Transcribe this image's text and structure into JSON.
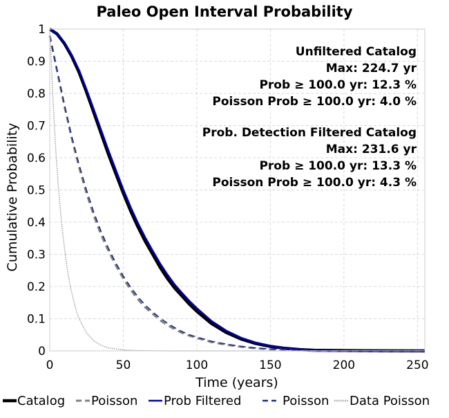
{
  "chart_data": {
    "type": "line",
    "title": "Paleo Open Interval Probability",
    "xlabel": "Time (years)",
    "ylabel": "Cumulative Probability",
    "xlim": [
      0,
      255
    ],
    "ylim": [
      0,
      1
    ],
    "xticks": [
      0,
      50,
      100,
      150,
      200,
      250
    ],
    "yticks": [
      0,
      0.1,
      0.2,
      0.3,
      0.4,
      0.5,
      0.6,
      0.7,
      0.8,
      0.9,
      1
    ],
    "grid": true,
    "legend_position": "bottom",
    "annotations": {
      "unfiltered": [
        "Unfiltered Catalog",
        "Max: 224.7 yr",
        "Prob ≥ 100.0 yr: 12.3 %",
        "Poisson Prob ≥ 100.0 yr: 4.0 %"
      ],
      "filtered": [
        "Prob. Detection Filtered Catalog",
        "Max: 231.6 yr",
        "Prob ≥ 100.0 yr: 13.3 %",
        "Poisson Prob ≥ 100.0 yr: 4.3 %"
      ]
    },
    "x": [
      0,
      5,
      10,
      15,
      20,
      25,
      30,
      35,
      40,
      45,
      50,
      55,
      60,
      65,
      70,
      75,
      80,
      85,
      90,
      95,
      100,
      110,
      120,
      130,
      140,
      150,
      160,
      170,
      180,
      200,
      225,
      255
    ],
    "series": [
      {
        "name": "Catalog",
        "color": "#000000",
        "style": "solid",
        "width": 4.5,
        "values": [
          1.0,
          0.985,
          0.955,
          0.915,
          0.865,
          0.805,
          0.74,
          0.675,
          0.61,
          0.55,
          0.49,
          0.435,
          0.385,
          0.34,
          0.3,
          0.26,
          0.225,
          0.195,
          0.17,
          0.145,
          0.123,
          0.085,
          0.057,
          0.037,
          0.023,
          0.014,
          0.008,
          0.004,
          0.002,
          0.001,
          0.0003,
          0.0
        ]
      },
      {
        "name": "Poisson",
        "color": "#808080",
        "style": "dashed",
        "width": 3,
        "values": [
          0.98,
          0.87,
          0.76,
          0.66,
          0.57,
          0.49,
          0.42,
          0.36,
          0.31,
          0.265,
          0.225,
          0.19,
          0.16,
          0.135,
          0.115,
          0.095,
          0.08,
          0.067,
          0.056,
          0.047,
          0.04,
          0.027,
          0.019,
          0.013,
          0.008,
          0.005,
          0.003,
          0.002,
          0.001,
          0.0005,
          0.0001,
          0.0
        ]
      },
      {
        "name": "Prob Filtered",
        "color": "#0000b4",
        "style": "solid",
        "width": 2.5,
        "values": [
          1.0,
          0.986,
          0.958,
          0.92,
          0.872,
          0.813,
          0.75,
          0.686,
          0.622,
          0.562,
          0.502,
          0.447,
          0.397,
          0.352,
          0.311,
          0.272,
          0.237,
          0.206,
          0.18,
          0.155,
          0.133,
          0.093,
          0.063,
          0.041,
          0.026,
          0.016,
          0.009,
          0.005,
          0.003,
          0.001,
          0.0004,
          0.0
        ]
      },
      {
        "name": "Poisson",
        "color": "#1c2a80",
        "style": "dashed",
        "width": 1.6,
        "values": [
          0.98,
          0.873,
          0.765,
          0.666,
          0.578,
          0.5,
          0.43,
          0.37,
          0.318,
          0.273,
          0.233,
          0.198,
          0.168,
          0.142,
          0.121,
          0.102,
          0.086,
          0.072,
          0.06,
          0.05,
          0.043,
          0.03,
          0.021,
          0.014,
          0.009,
          0.006,
          0.004,
          0.002,
          0.001,
          0.0005,
          0.0001,
          0.0
        ]
      },
      {
        "name": "Data Poisson",
        "color": "#a0a0a0",
        "style": "dotted",
        "width": 1.5,
        "x": [
          0,
          2,
          4,
          6,
          8,
          10,
          12,
          14,
          16,
          18,
          20,
          25,
          30,
          35,
          40,
          50,
          60,
          80,
          255
        ],
        "values": [
          1.0,
          0.8,
          0.63,
          0.5,
          0.4,
          0.32,
          0.25,
          0.2,
          0.16,
          0.126,
          0.1,
          0.056,
          0.031,
          0.017,
          0.009,
          0.003,
          0.001,
          0.0,
          0.0
        ]
      }
    ]
  }
}
